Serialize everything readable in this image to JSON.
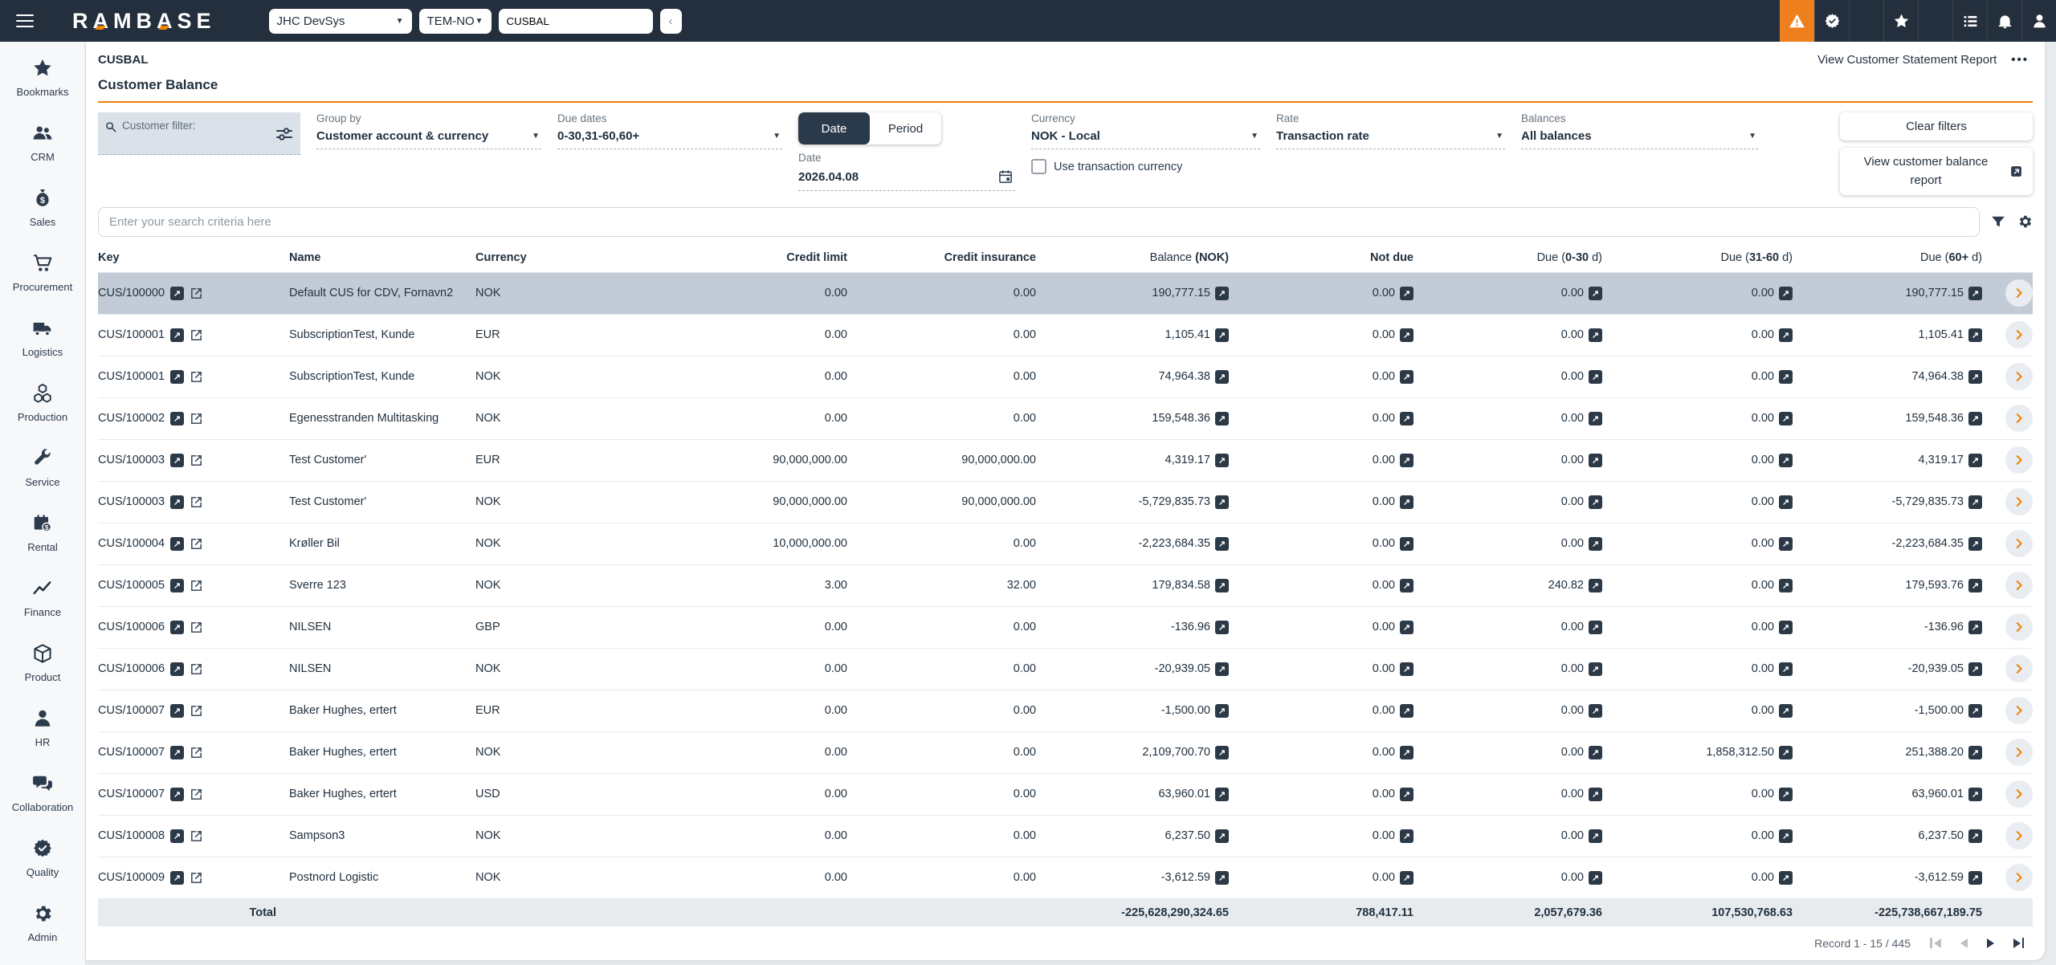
{
  "header": {
    "logo": "RAMBASE",
    "system_select": "JHC DevSys",
    "locale_select": "TEM-NO",
    "command_input": "CUSBAL",
    "icons": [
      "alert",
      "certificate",
      "help",
      "favorites",
      "attachments",
      "tasks",
      "notifications",
      "user"
    ]
  },
  "sidebar": {
    "items": [
      {
        "label": "Bookmarks",
        "icon": "star"
      },
      {
        "label": "CRM",
        "icon": "crm"
      },
      {
        "label": "Sales",
        "icon": "sales"
      },
      {
        "label": "Procurement",
        "icon": "procurement"
      },
      {
        "label": "Logistics",
        "icon": "logistics"
      },
      {
        "label": "Production",
        "icon": "production"
      },
      {
        "label": "Service",
        "icon": "service"
      },
      {
        "label": "Rental",
        "icon": "rental"
      },
      {
        "label": "Finance",
        "icon": "finance"
      },
      {
        "label": "Product",
        "icon": "product"
      },
      {
        "label": "HR",
        "icon": "hr"
      },
      {
        "label": "Collaboration",
        "icon": "collaboration"
      },
      {
        "label": "Quality",
        "icon": "quality"
      },
      {
        "label": "Admin",
        "icon": "admin"
      }
    ]
  },
  "page": {
    "breadcrumb": "CUSBAL",
    "title": "Customer Balance",
    "statement_report_link": "View Customer Statement Report",
    "more_menu": "•••"
  },
  "filters": {
    "customer_filter_label": "Customer filter:",
    "group_by": {
      "label": "Group by",
      "value": "Customer account & currency"
    },
    "due_dates": {
      "label": "Due dates",
      "value": "0-30,31-60,60+"
    },
    "view_toggle": {
      "options": [
        "Date",
        "Period"
      ],
      "selected": "Date"
    },
    "date": {
      "label": "Date",
      "value": "2026.04.08"
    },
    "currency": {
      "label": "Currency",
      "value": "NOK - Local"
    },
    "use_transaction_currency": {
      "label": "Use transaction currency",
      "checked": false
    },
    "rate": {
      "label": "Rate",
      "value": "Transaction rate"
    },
    "balances": {
      "label": "Balances",
      "value": "All balances"
    },
    "clear_filters_button": "Clear filters",
    "view_balance_report_button": "View customer balance report"
  },
  "search": {
    "placeholder": "Enter your search criteria here"
  },
  "table": {
    "columns": [
      {
        "bold": "Key",
        "align": "left"
      },
      {
        "bold": "Name",
        "align": "left"
      },
      {
        "bold": "Currency",
        "align": "left"
      },
      {
        "bold": "Credit limit",
        "align": "right"
      },
      {
        "bold": "Credit insurance",
        "align": "right"
      },
      {
        "pre": "Balance ",
        "bold": "(NOK)",
        "align": "right"
      },
      {
        "bold": "Not due",
        "align": "right"
      },
      {
        "pre": "Due (",
        "bold": "0-30",
        "post": " d)",
        "align": "right"
      },
      {
        "pre": "Due (",
        "bold": "31-60",
        "post": " d)",
        "align": "right"
      },
      {
        "pre": "Due (",
        "bold": "60+",
        "post": " d)",
        "align": "right"
      }
    ],
    "rows": [
      {
        "key": "CUS/100000",
        "name": "Default CUS for CDV, Fornavn2",
        "currency": "NOK",
        "credit_limit": "0.00",
        "credit_insurance": "0.00",
        "balance": "190,777.15",
        "not_due": "0.00",
        "due_0_30": "0.00",
        "due_31_60": "0.00",
        "due_60_plus": "190,777.15",
        "selected": true
      },
      {
        "key": "CUS/100001",
        "name": "SubscriptionTest, Kunde",
        "currency": "EUR",
        "credit_limit": "0.00",
        "credit_insurance": "0.00",
        "balance": "1,105.41",
        "not_due": "0.00",
        "due_0_30": "0.00",
        "due_31_60": "0.00",
        "due_60_plus": "1,105.41"
      },
      {
        "key": "CUS/100001",
        "name": "SubscriptionTest, Kunde",
        "currency": "NOK",
        "credit_limit": "0.00",
        "credit_insurance": "0.00",
        "balance": "74,964.38",
        "not_due": "0.00",
        "due_0_30": "0.00",
        "due_31_60": "0.00",
        "due_60_plus": "74,964.38"
      },
      {
        "key": "CUS/100002",
        "name": "Egenesstranden Multitasking",
        "currency": "NOK",
        "credit_limit": "0.00",
        "credit_insurance": "0.00",
        "balance": "159,548.36",
        "not_due": "0.00",
        "due_0_30": "0.00",
        "due_31_60": "0.00",
        "due_60_plus": "159,548.36"
      },
      {
        "key": "CUS/100003",
        "name": "Test Customer'",
        "currency": "EUR",
        "credit_limit": "90,000,000.00",
        "credit_insurance": "90,000,000.00",
        "balance": "4,319.17",
        "not_due": "0.00",
        "due_0_30": "0.00",
        "due_31_60": "0.00",
        "due_60_plus": "4,319.17"
      },
      {
        "key": "CUS/100003",
        "name": "Test Customer'",
        "currency": "NOK",
        "credit_limit": "90,000,000.00",
        "credit_insurance": "90,000,000.00",
        "balance": "-5,729,835.73",
        "not_due": "0.00",
        "due_0_30": "0.00",
        "due_31_60": "0.00",
        "due_60_plus": "-5,729,835.73"
      },
      {
        "key": "CUS/100004",
        "name": "Krøller Bil",
        "currency": "NOK",
        "credit_limit": "10,000,000.00",
        "credit_insurance": "0.00",
        "balance": "-2,223,684.35",
        "not_due": "0.00",
        "due_0_30": "0.00",
        "due_31_60": "0.00",
        "due_60_plus": "-2,223,684.35"
      },
      {
        "key": "CUS/100005",
        "name": "Sverre 123",
        "currency": "NOK",
        "credit_limit": "3.00",
        "credit_insurance": "32.00",
        "balance": "179,834.58",
        "not_due": "0.00",
        "due_0_30": "240.82",
        "due_31_60": "0.00",
        "due_60_plus": "179,593.76"
      },
      {
        "key": "CUS/100006",
        "name": "NILSEN",
        "currency": "GBP",
        "credit_limit": "0.00",
        "credit_insurance": "0.00",
        "balance": "-136.96",
        "not_due": "0.00",
        "due_0_30": "0.00",
        "due_31_60": "0.00",
        "due_60_plus": "-136.96"
      },
      {
        "key": "CUS/100006",
        "name": "NILSEN",
        "currency": "NOK",
        "credit_limit": "0.00",
        "credit_insurance": "0.00",
        "balance": "-20,939.05",
        "not_due": "0.00",
        "due_0_30": "0.00",
        "due_31_60": "0.00",
        "due_60_plus": "-20,939.05"
      },
      {
        "key": "CUS/100007",
        "name": "Baker Hughes, ertert",
        "currency": "EUR",
        "credit_limit": "0.00",
        "credit_insurance": "0.00",
        "balance": "-1,500.00",
        "not_due": "0.00",
        "due_0_30": "0.00",
        "due_31_60": "0.00",
        "due_60_plus": "-1,500.00"
      },
      {
        "key": "CUS/100007",
        "name": "Baker Hughes, ertert",
        "currency": "NOK",
        "credit_limit": "0.00",
        "credit_insurance": "0.00",
        "balance": "2,109,700.70",
        "not_due": "0.00",
        "due_0_30": "0.00",
        "due_31_60": "1,858,312.50",
        "due_60_plus": "251,388.20"
      },
      {
        "key": "CUS/100007",
        "name": "Baker Hughes, ertert",
        "currency": "USD",
        "credit_limit": "0.00",
        "credit_insurance": "0.00",
        "balance": "63,960.01",
        "not_due": "0.00",
        "due_0_30": "0.00",
        "due_31_60": "0.00",
        "due_60_plus": "63,960.01"
      },
      {
        "key": "CUS/100008",
        "name": "Sampson3",
        "currency": "NOK",
        "credit_limit": "0.00",
        "credit_insurance": "0.00",
        "balance": "6,237.50",
        "not_due": "0.00",
        "due_0_30": "0.00",
        "due_31_60": "0.00",
        "due_60_plus": "6,237.50"
      },
      {
        "key": "CUS/100009",
        "name": "Postnord Logistic",
        "currency": "NOK",
        "credit_limit": "0.00",
        "credit_insurance": "0.00",
        "balance": "-3,612.59",
        "not_due": "0.00",
        "due_0_30": "0.00",
        "due_31_60": "0.00",
        "due_60_plus": "-3,612.59"
      }
    ],
    "total": {
      "label": "Total",
      "balance": "-225,628,290,324.65",
      "not_due": "788,417.11",
      "due_0_30": "2,057,679.36",
      "due_31_60": "107,530,768.63",
      "due_60_plus": "-225,738,667,189.75"
    }
  },
  "pagination": {
    "label": "Record 1 - 15 / 445"
  },
  "colors": {
    "accent_orange": "#ef8200",
    "alert_orange": "#ee7f1d",
    "header_bg": "#242f3d",
    "selected_row": "#c3ccd6"
  }
}
